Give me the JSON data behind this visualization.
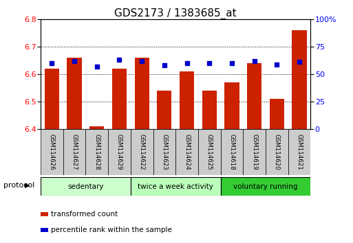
{
  "title": "GDS2173 / 1383685_at",
  "samples": [
    "GSM114626",
    "GSM114627",
    "GSM114628",
    "GSM114629",
    "GSM114622",
    "GSM114623",
    "GSM114624",
    "GSM114625",
    "GSM114618",
    "GSM114619",
    "GSM114620",
    "GSM114621"
  ],
  "bar_values": [
    6.62,
    6.66,
    6.41,
    6.62,
    6.66,
    6.54,
    6.61,
    6.54,
    6.57,
    6.64,
    6.51,
    6.76
  ],
  "percentile_values": [
    60,
    62,
    57,
    63,
    62,
    58,
    60,
    60,
    60,
    62,
    59,
    61
  ],
  "bar_color": "#cc2200",
  "percentile_color": "#0000cc",
  "ylim_left": [
    6.4,
    6.8
  ],
  "ylim_right": [
    0,
    100
  ],
  "yticks_left": [
    6.4,
    6.5,
    6.6,
    6.7,
    6.8
  ],
  "yticks_right": [
    0,
    25,
    50,
    75,
    100
  ],
  "groups": [
    {
      "label": "sedentary",
      "start": 0,
      "end": 4
    },
    {
      "label": "twice a week activity",
      "start": 4,
      "end": 8
    },
    {
      "label": "voluntary running",
      "start": 8,
      "end": 12
    }
  ],
  "group_colors": [
    "#ccffcc",
    "#bbffbb",
    "#33cc33"
  ],
  "protocol_label": "protocol",
  "legend_bar_label": "transformed count",
  "legend_percentile_label": "percentile rank within the sample",
  "background_color": "#ffffff",
  "plot_background": "#ffffff",
  "bar_bottom": 6.4,
  "bar_width": 0.65,
  "title_fontsize": 11,
  "tick_fontsize": 8,
  "label_fontsize": 8
}
